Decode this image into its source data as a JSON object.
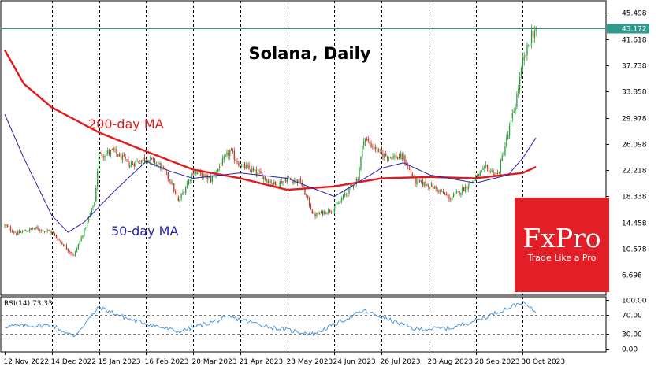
{
  "chart_data": [
    {
      "type": "candlestick",
      "title": "Solana, Daily",
      "current_price": 43.172,
      "y_ticks": [
        6.698,
        10.578,
        14.458,
        18.338,
        22.218,
        26.098,
        29.978,
        33.858,
        37.738,
        41.618,
        45.498
      ],
      "x_ticks": [
        "12 Nov 2022",
        "14 Dec 2022",
        "15 Jan 2023",
        "16 Feb 2023",
        "20 Mar 2023",
        "21 Apr 2023",
        "23 May 2023",
        "24 Jun 2023",
        "26 Jul 2023",
        "28 Aug 2023",
        "28 Sep 2023",
        "30 Oct 2023"
      ],
      "ylim": [
        3.8,
        47.3
      ],
      "close_anchors": [
        {
          "date": "2022-11-12",
          "close": 14.0
        },
        {
          "date": "2022-11-20",
          "close": 12.8
        },
        {
          "date": "2022-12-02",
          "close": 13.6
        },
        {
          "date": "2022-12-14",
          "close": 13.0
        },
        {
          "date": "2022-12-29",
          "close": 9.5
        },
        {
          "date": "2023-01-05",
          "close": 13.3
        },
        {
          "date": "2023-01-12",
          "close": 17.5
        },
        {
          "date": "2023-01-15",
          "close": 24.5
        },
        {
          "date": "2023-01-25",
          "close": 25.0
        },
        {
          "date": "2023-02-05",
          "close": 23.0
        },
        {
          "date": "2023-02-16",
          "close": 24.0
        },
        {
          "date": "2023-02-25",
          "close": 23.0
        },
        {
          "date": "2023-03-05",
          "close": 20.5
        },
        {
          "date": "2023-03-10",
          "close": 17.5
        },
        {
          "date": "2023-03-20",
          "close": 22.0
        },
        {
          "date": "2023-04-01",
          "close": 20.8
        },
        {
          "date": "2023-04-14",
          "close": 25.0
        },
        {
          "date": "2023-04-21",
          "close": 23.0
        },
        {
          "date": "2023-05-05",
          "close": 21.5
        },
        {
          "date": "2023-05-15",
          "close": 20.0
        },
        {
          "date": "2023-05-23",
          "close": 21.0
        },
        {
          "date": "2023-06-01",
          "close": 20.5
        },
        {
          "date": "2023-06-10",
          "close": 15.5
        },
        {
          "date": "2023-06-24",
          "close": 16.5
        },
        {
          "date": "2023-07-01",
          "close": 18.5
        },
        {
          "date": "2023-07-10",
          "close": 21.0
        },
        {
          "date": "2023-07-14",
          "close": 27.0
        },
        {
          "date": "2023-07-26",
          "close": 24.5
        },
        {
          "date": "2023-08-10",
          "close": 24.0
        },
        {
          "date": "2023-08-18",
          "close": 20.5
        },
        {
          "date": "2023-08-28",
          "close": 20.0
        },
        {
          "date": "2023-09-11",
          "close": 18.0
        },
        {
          "date": "2023-09-20",
          "close": 19.5
        },
        {
          "date": "2023-09-28",
          "close": 21.0
        },
        {
          "date": "2023-10-05",
          "close": 22.5
        },
        {
          "date": "2023-10-13",
          "close": 21.5
        },
        {
          "date": "2023-10-20",
          "close": 27.5
        },
        {
          "date": "2023-10-25",
          "close": 32.0
        },
        {
          "date": "2023-10-30",
          "close": 38.0
        },
        {
          "date": "2023-11-02",
          "close": 40.0
        },
        {
          "date": "2023-11-05",
          "close": 42.5
        },
        {
          "date": "2023-11-08",
          "close": 43.172
        }
      ],
      "ma200": {
        "label": "200-day MA",
        "color": "#e31a1c",
        "points": [
          {
            "date": "2022-11-12",
            "value": 40.0
          },
          {
            "date": "2022-11-25",
            "value": 35.0
          },
          {
            "date": "2022-12-14",
            "value": 31.5
          },
          {
            "date": "2023-01-15",
            "value": 27.8
          },
          {
            "date": "2023-02-16",
            "value": 25.0
          },
          {
            "date": "2023-03-20",
            "value": 22.3
          },
          {
            "date": "2023-04-21",
            "value": 21.0
          },
          {
            "date": "2023-05-23",
            "value": 19.3
          },
          {
            "date": "2023-06-24",
            "value": 19.8
          },
          {
            "date": "2023-07-26",
            "value": 21.0
          },
          {
            "date": "2023-08-28",
            "value": 21.2
          },
          {
            "date": "2023-09-28",
            "value": 21.0
          },
          {
            "date": "2023-10-30",
            "value": 21.8
          },
          {
            "date": "2023-11-08",
            "value": 22.7
          }
        ]
      },
      "ma50": {
        "label": "50-day MA",
        "color": "#2323a8",
        "points": [
          {
            "date": "2022-11-12",
            "value": 30.5
          },
          {
            "date": "2022-11-25",
            "value": 24.0
          },
          {
            "date": "2022-12-14",
            "value": 15.5
          },
          {
            "date": "2022-12-25",
            "value": 13.0
          },
          {
            "date": "2023-01-05",
            "value": 14.5
          },
          {
            "date": "2023-01-25",
            "value": 19.0
          },
          {
            "date": "2023-02-16",
            "value": 23.5
          },
          {
            "date": "2023-03-05",
            "value": 22.0
          },
          {
            "date": "2023-03-20",
            "value": 21.0
          },
          {
            "date": "2023-04-21",
            "value": 21.8
          },
          {
            "date": "2023-05-23",
            "value": 21.0
          },
          {
            "date": "2023-06-24",
            "value": 18.3
          },
          {
            "date": "2023-07-26",
            "value": 22.5
          },
          {
            "date": "2023-08-10",
            "value": 23.3
          },
          {
            "date": "2023-08-28",
            "value": 21.5
          },
          {
            "date": "2023-09-28",
            "value": 20.3
          },
          {
            "date": "2023-10-20",
            "value": 21.5
          },
          {
            "date": "2023-10-30",
            "value": 24.0
          },
          {
            "date": "2023-11-08",
            "value": 27.0
          }
        ]
      }
    },
    {
      "type": "line",
      "indicator": "RSI(14)",
      "label": "RSI(14) 73.33",
      "y_ticks": [
        "100.00",
        "70.00",
        "30.00",
        "0.00"
      ],
      "ylim": [
        0,
        100
      ],
      "levels": [
        70,
        30
      ],
      "points": [
        {
          "date": "2022-11-12",
          "value": 46
        },
        {
          "date": "2022-12-14",
          "value": 48
        },
        {
          "date": "2022-12-29",
          "value": 25
        },
        {
          "date": "2023-01-15",
          "value": 85
        },
        {
          "date": "2023-02-05",
          "value": 60
        },
        {
          "date": "2023-03-10",
          "value": 35
        },
        {
          "date": "2023-04-14",
          "value": 65
        },
        {
          "date": "2023-05-15",
          "value": 42
        },
        {
          "date": "2023-06-10",
          "value": 30
        },
        {
          "date": "2023-07-14",
          "value": 78
        },
        {
          "date": "2023-08-18",
          "value": 40
        },
        {
          "date": "2023-09-11",
          "value": 42
        },
        {
          "date": "2023-10-05",
          "value": 65
        },
        {
          "date": "2023-10-30",
          "value": 96
        },
        {
          "date": "2023-11-08",
          "value": 73.33
        }
      ]
    }
  ],
  "logo": {
    "name": "FxPro",
    "tagline": "Trade Like a Pro",
    "color": "#e41e26"
  },
  "colors": {
    "bull": "#2a9d3a",
    "bear": "#c0392b",
    "rsi": "#3c8ed6",
    "price_line": "#2f9a8e",
    "price_tag": "#2f9a8e"
  }
}
